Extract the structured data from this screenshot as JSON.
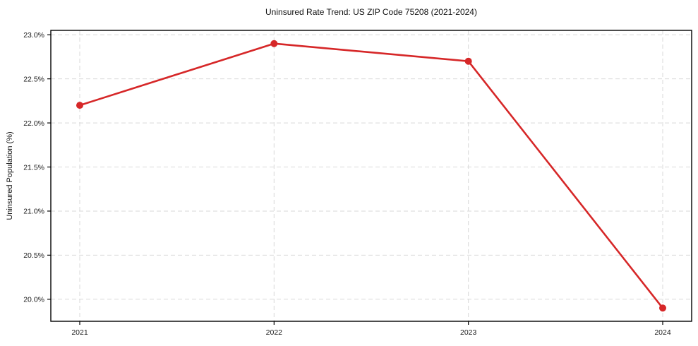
{
  "chart_data": {
    "type": "line",
    "title": "Uninsured Rate Trend: US ZIP Code 75208 (2021-2024)",
    "categories": [
      "2021",
      "2022",
      "2023",
      "2024"
    ],
    "values": [
      22.2,
      22.9,
      22.7,
      19.9
    ],
    "xlabel": "",
    "ylabel": "Uninsured Population (%)",
    "ylim": [
      19.75,
      23.05
    ],
    "yticks": [
      20.0,
      20.5,
      21.0,
      21.5,
      22.0,
      22.5,
      23.0
    ],
    "ytick_labels": [
      "20.0%",
      "20.5%",
      "21.0%",
      "21.5%",
      "22.0%",
      "22.5%",
      "23.0%"
    ],
    "grid": true,
    "legend_position": "none",
    "line_color": "#d62728",
    "grid_color": "#d9d9d9",
    "spine_color": "#000000",
    "tick_label_color": "#1a1a1a",
    "marker": "circle"
  }
}
